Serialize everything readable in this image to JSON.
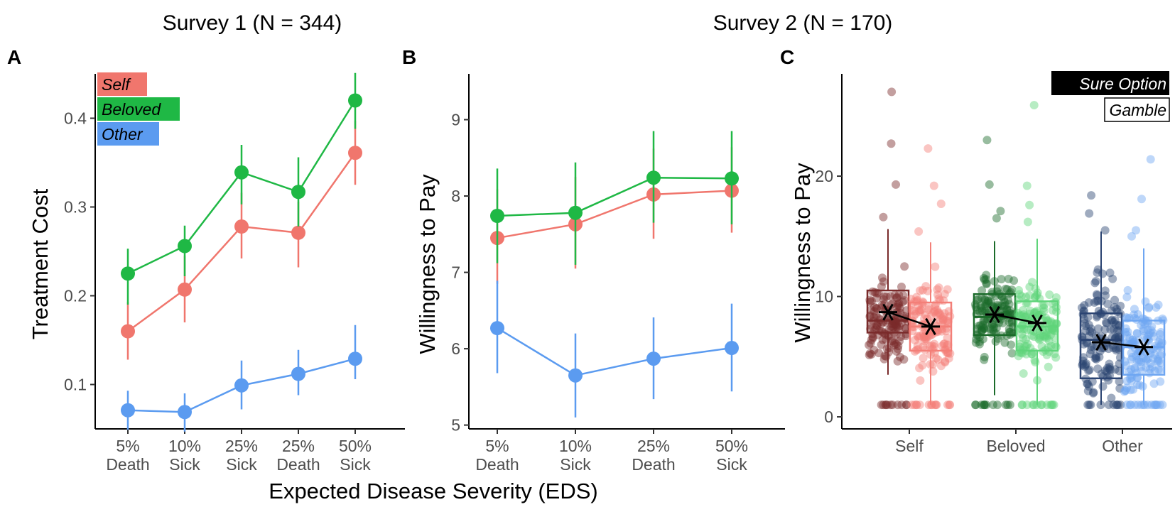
{
  "figure": {
    "survey1_title": "Survey 1 (N = 344)",
    "survey2_title": "Survey 2 (N = 170)",
    "shared_xlabel": "Expected Disease Severity (EDS)"
  },
  "colors": {
    "self": "#f0766d",
    "beloved": "#1fb845",
    "other": "#5b9bf0",
    "self_sure": "#7a2b2b",
    "beloved_sure": "#1b6b2a",
    "other_sure": "#2b4472",
    "self_gamble": "#f37f78",
    "beloved_gamble": "#5fd47a",
    "other_gamble": "#6ea6f2"
  },
  "legend_A": [
    "Self",
    "Beloved",
    "Other"
  ],
  "legend_C": [
    "Sure Option",
    "Gamble"
  ],
  "chart_data": [
    {
      "panel": "A",
      "type": "line",
      "ylabel": "Treatment Cost",
      "xlabel": "Expected Disease Severity (EDS)",
      "categories": [
        [
          "5%",
          "Death"
        ],
        [
          "10%",
          "Sick"
        ],
        [
          "25%",
          "Sick"
        ],
        [
          "25%",
          "Death"
        ],
        [
          "50%",
          "Sick"
        ]
      ],
      "ylim": [
        0.05,
        0.45
      ],
      "yticks": [
        0.1,
        0.2,
        0.3,
        0.4
      ],
      "ytick_labels": [
        "0.1",
        "0.2",
        "0.3",
        "0.4"
      ],
      "series": [
        {
          "name": "Self",
          "values": [
            0.16,
            0.207,
            0.278,
            0.271,
            0.361
          ],
          "lo": [
            0.128,
            0.17,
            0.242,
            0.232,
            0.325
          ],
          "hi": [
            0.193,
            0.245,
            0.316,
            0.306,
            0.397
          ]
        },
        {
          "name": "Beloved",
          "values": [
            0.225,
            0.256,
            0.339,
            0.317,
            0.42
          ],
          "lo": [
            0.19,
            0.222,
            0.303,
            0.278,
            0.388
          ],
          "hi": [
            0.253,
            0.279,
            0.37,
            0.356,
            0.451
          ]
        },
        {
          "name": "Other",
          "values": [
            0.071,
            0.069,
            0.099,
            0.112,
            0.129
          ],
          "lo": [
            0.049,
            0.047,
            0.072,
            0.088,
            0.106
          ],
          "hi": [
            0.093,
            0.09,
            0.127,
            0.139,
            0.167
          ]
        }
      ]
    },
    {
      "panel": "B",
      "type": "line",
      "ylabel": "Willingness to Pay",
      "categories": [
        [
          "5%",
          "Death"
        ],
        [
          "10%",
          "Sick"
        ],
        [
          "25%",
          "Death"
        ],
        [
          "50%",
          "Sick"
        ]
      ],
      "ylim": [
        4.95,
        9.6
      ],
      "yticks": [
        5,
        6,
        7,
        8,
        9
      ],
      "ytick_labels": [
        "5",
        "6",
        "7",
        "8",
        "9"
      ],
      "series": [
        {
          "name": "Self",
          "values": [
            7.45,
            7.63,
            8.02,
            8.07
          ],
          "lo": [
            6.85,
            7.05,
            7.44,
            7.52
          ],
          "hi": [
            8.09,
            8.25,
            8.62,
            8.64
          ]
        },
        {
          "name": "Beloved",
          "values": [
            7.74,
            7.78,
            8.24,
            8.23
          ],
          "lo": [
            7.12,
            7.1,
            7.65,
            7.63
          ],
          "hi": [
            8.36,
            8.44,
            8.85,
            8.85
          ]
        },
        {
          "name": "Other",
          "values": [
            6.27,
            5.65,
            5.87,
            6.01
          ],
          "lo": [
            5.68,
            5.1,
            5.34,
            5.44
          ],
          "hi": [
            6.89,
            6.2,
            6.41,
            6.59
          ]
        }
      ]
    },
    {
      "panel": "C",
      "type": "box",
      "ylabel": "Willingness to Pay",
      "categories": [
        "Self",
        "Beloved",
        "Other"
      ],
      "ylim": [
        -1,
        28.5
      ],
      "yticks": [
        0,
        10,
        20
      ],
      "ytick_labels": [
        "0",
        "10",
        "20"
      ],
      "groups": [
        {
          "category": "Self",
          "sure": {
            "q1": 7.0,
            "median": 8.0,
            "q3": 10.5,
            "lo": 3.5,
            "hi": 15.6,
            "mean": 8.7
          },
          "gamble": {
            "q1": 5.5,
            "median": 7.5,
            "q3": 9.5,
            "lo": 1.0,
            "hi": 14.5,
            "mean": 7.5
          }
        },
        {
          "category": "Beloved",
          "sure": {
            "q1": 6.8,
            "median": 8.3,
            "q3": 10.2,
            "lo": 1.8,
            "hi": 14.6,
            "mean": 8.5
          },
          "gamble": {
            "q1": 5.5,
            "median": 7.5,
            "q3": 9.6,
            "lo": 1.0,
            "hi": 14.8,
            "mean": 7.8
          }
        },
        {
          "category": "Other",
          "sure": {
            "q1": 3.2,
            "median": 6.4,
            "q3": 8.6,
            "lo": 1.0,
            "hi": 15.4,
            "mean": 6.2
          },
          "gamble": {
            "q1": 3.5,
            "median": 5.8,
            "q3": 8.0,
            "lo": 1.0,
            "hi": 14.0,
            "mean": 5.8
          }
        }
      ],
      "outliers": {
        "Self_sure": [
          27,
          22.7,
          19.3,
          16.6
        ],
        "Self_gamble": [
          22.3,
          19.2,
          17.7,
          15.4
        ],
        "Beloved_sure": [
          23,
          19.3,
          17.1,
          16.5
        ],
        "Beloved_gamble": [
          25.9,
          19.2,
          17.6,
          16.2
        ],
        "Other_sure": [
          18.4,
          16.9,
          15.5
        ],
        "Other_gamble": [
          21.4,
          18.1,
          15.5,
          15.0
        ]
      }
    }
  ]
}
